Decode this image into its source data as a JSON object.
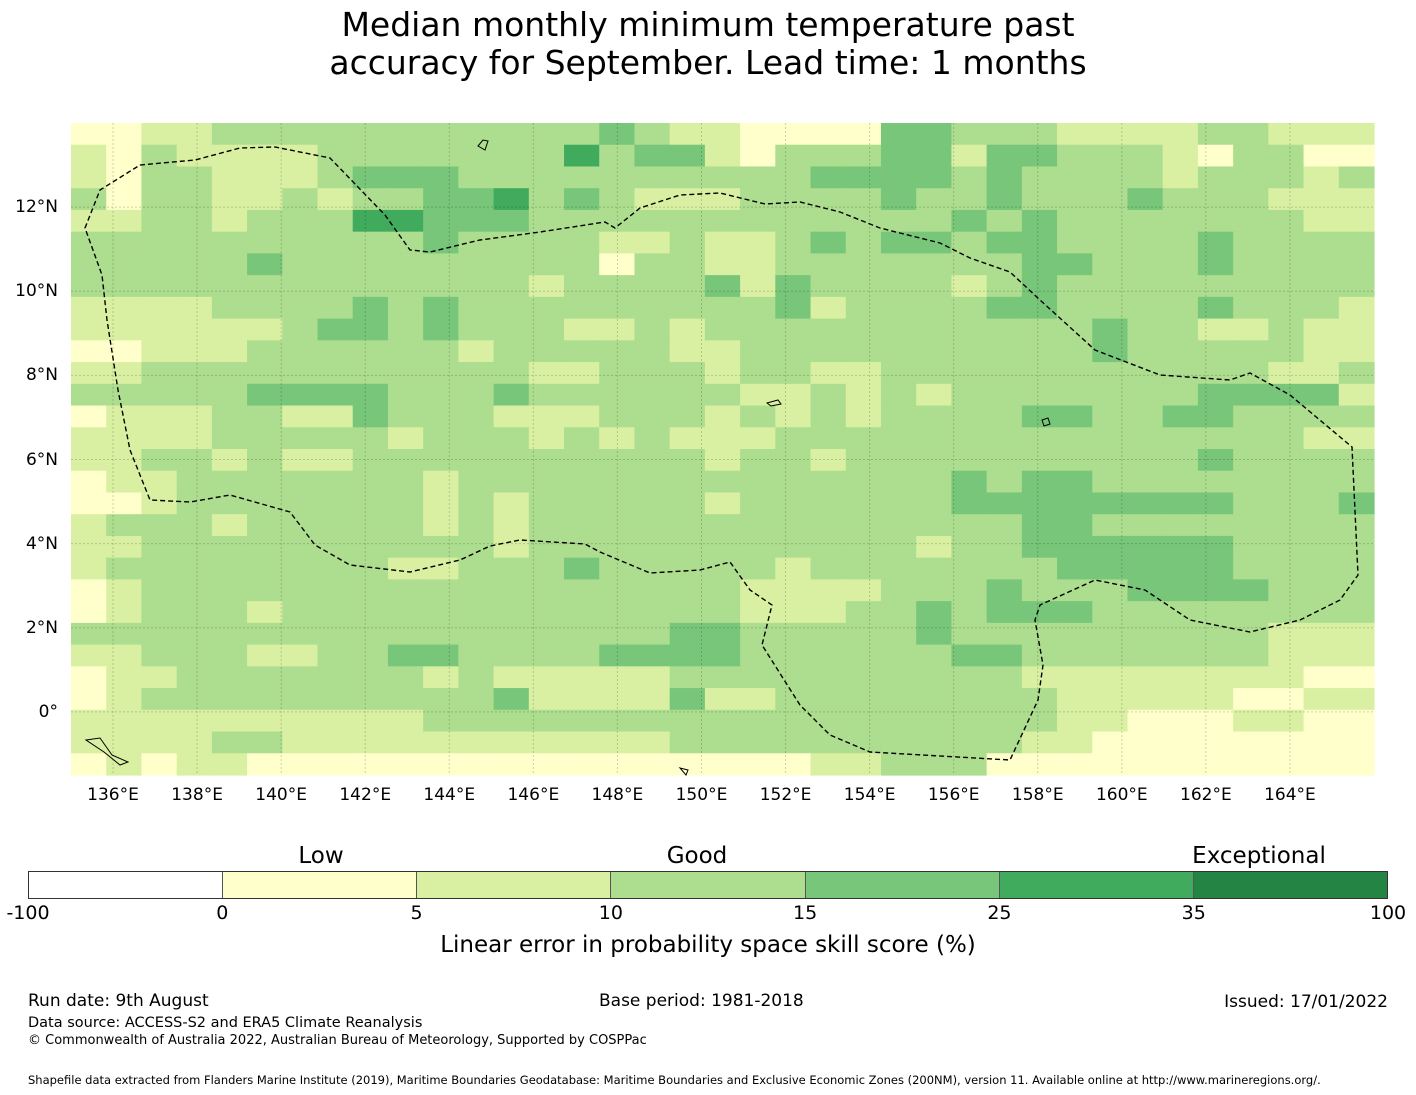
{
  "title_line1": "Median monthly minimum temperature past",
  "title_line2": "accuracy for September. Lead time: 1 months",
  "map": {
    "lon_ticks": [
      "136°E",
      "138°E",
      "140°E",
      "142°E",
      "144°E",
      "146°E",
      "148°E",
      "150°E",
      "152°E",
      "154°E",
      "156°E",
      "158°E",
      "160°E",
      "162°E",
      "164°E"
    ],
    "lat_ticks": [
      "12°N",
      "10°N",
      "8°N",
      "6°N",
      "4°N",
      "2°N",
      "0°"
    ],
    "lon_range": [
      135.0,
      166.0
    ],
    "lat_range": [
      -1.5,
      14.0
    ],
    "grid_rows_north_to_south": [
      "1122333333333334322111144333222233222",
      "2132222333333353442133344244333213311",
      "2133222344433333333334444343333233323",
      "3133223233445343222333343343334333222",
      "2233233355444333333333333434333333322",
      "3333333333433332232234344344333343333",
      "3333343333333331332233333334433343333",
      "3333333333333233334243333234333333333",
      "2222333343433333333342333344333343332",
      "2222223443433322323333333333343322322",
      "1122233333323333322333333333343333322",
      "2233333333333223332332233333333333223",
      "3333344443334333333223232333333344442",
      "1222332243332223332323233334433443333",
      "2222333332333232322233333333333333322",
      "2233232233333333332332333333333343333",
      "1223333333233333333333333434433333333",
      "1123333333232333332333333444444443334",
      "2333233333232333333333333334433333333",
      "2233333333332333333333332334444443333",
      "2333333332233343333323333333444443333",
      "1233333333333333333222233343334444333",
      "1233323333333333333222334344433333333",
      "3333333333333333344333334333333333222",
      "2233322334433334444333333443333333222",
      "1223333333232222233333333332222222211",
      "1233333333334222242233333333222221122",
      "2222222222333333333333333333221112211",
      "2222332222222222233333333332211111111",
      "1212211111111111111112233311111111111"
    ],
    "legend_note": "grid values are colorbar bin indices 0-6 (0 = -100..0, 6 = 35..100)"
  },
  "colorbar": {
    "colors": [
      "#ffffff",
      "#ffffcc",
      "#d9f0a3",
      "#addd8e",
      "#78c679",
      "#41ab5d",
      "#238443"
    ],
    "tick_labels": [
      "-100",
      "0",
      "5",
      "10",
      "15",
      "25",
      "35",
      "100"
    ],
    "categories": [
      "Low",
      "Good",
      "Exceptional"
    ],
    "label": "Linear error in probability space skill score (%)"
  },
  "footer": {
    "run_date": "Run date: 9th August",
    "base_period": "Base period: 1981-2018",
    "issued": "Issued: 17/01/2022",
    "data_source": "Data source: ACCESS-S2 and ERA5 Climate Reanalysis",
    "copyright": "© Commonwealth of Australia 2022, Australian Bureau of Meteorology, Supported by COSPPac",
    "shapefile": "Shapefile data extracted from Flanders Marine Institute (2019), Maritime Boundaries Geodatabase: Maritime Boundaries and Exclusive Economic Zones (200NM), version 11. Available online at http://www.marineregions.org/."
  }
}
